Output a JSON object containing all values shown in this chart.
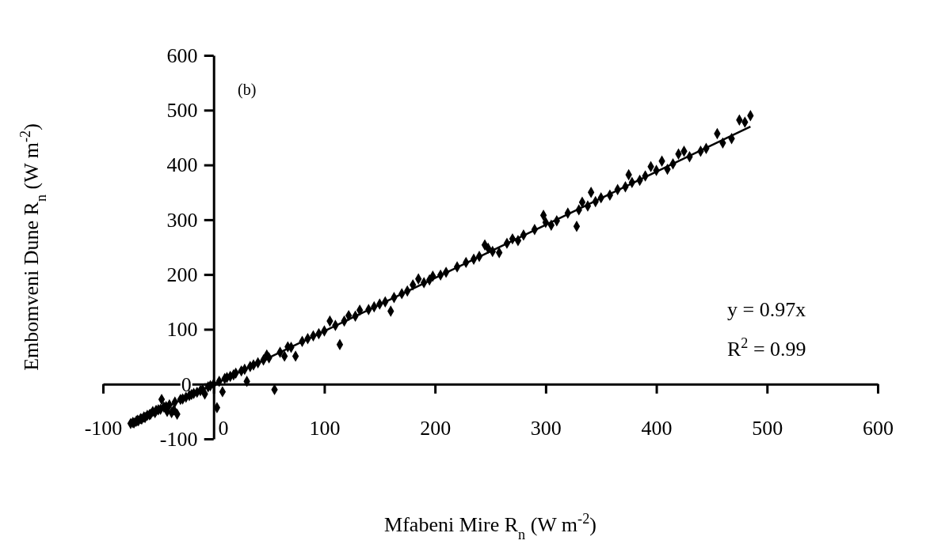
{
  "chart_data": {
    "type": "scatter",
    "xlabel": "Mfabeni Mire R$_{n}$  (W m$^{-2}$)",
    "ylabel": "Embomveni Dune R$_{n}$  (W m$^{-2}$)",
    "xlim": [
      -100,
      600
    ],
    "xticks": [
      -100,
      0,
      100,
      200,
      300,
      400,
      500,
      600
    ],
    "ylim": [
      -100,
      600
    ],
    "yticks": [
      -100,
      0,
      100,
      200,
      300,
      400,
      500,
      600
    ],
    "grid": false,
    "annotations": [
      "(b)",
      "y = 0.97x",
      "R$^{2}$ = 0.99"
    ],
    "series": [
      {
        "marker": "diamond",
        "color": "#000000",
        "x": [
          -75,
          -73,
          -72,
          -70,
          -69,
          -68,
          -66,
          -65,
          -63,
          -62,
          -60,
          -58,
          -57,
          -55,
          -53,
          -52,
          -50,
          -48,
          -47,
          -45,
          -43,
          -42,
          -40,
          -38,
          -36,
          -35,
          -33,
          -30,
          -28,
          -25,
          -22,
          -20,
          -18,
          -15,
          -12,
          -10,
          -8,
          -5,
          -3,
          0,
          3,
          5,
          8,
          10,
          12,
          15,
          18,
          20,
          25,
          28,
          30,
          33,
          36,
          40,
          45,
          48,
          50,
          55,
          60,
          64,
          67,
          70,
          74,
          80,
          85,
          90,
          95,
          100,
          105,
          110,
          114,
          118,
          122,
          128,
          132,
          140,
          145,
          150,
          155,
          160,
          163,
          170,
          175,
          180,
          185,
          190,
          195,
          198,
          205,
          210,
          220,
          228,
          235,
          240,
          245,
          248,
          252,
          258,
          265,
          270,
          275,
          280,
          290,
          298,
          300,
          305,
          310,
          320,
          328,
          330,
          333,
          338,
          341,
          345,
          350,
          358,
          365,
          372,
          375,
          378,
          385,
          390,
          395,
          400,
          405,
          410,
          415,
          420,
          425,
          430,
          440,
          445,
          455,
          460,
          468,
          475,
          480,
          485
        ],
        "values": [
          -72,
          -70,
          -71,
          -68,
          -66,
          -67,
          -63,
          -64,
          -60,
          -61,
          -57,
          -56,
          -55,
          -50,
          -52,
          -48,
          -47,
          -46,
          -28,
          -42,
          -41,
          -50,
          -38,
          -52,
          -47,
          -33,
          -55,
          -28,
          -27,
          -24,
          -21,
          -19,
          -17,
          -15,
          -12,
          -10,
          -18,
          -5,
          -3,
          0,
          -43,
          5,
          -14,
          10,
          12,
          14,
          17,
          20,
          24,
          27,
          5,
          32,
          35,
          39,
          44,
          53,
          48,
          -10,
          58,
          51,
          68,
          67,
          51,
          78,
          83,
          88,
          92,
          97,
          115,
          107,
          72,
          115,
          125,
          124,
          135,
          136,
          141,
          146,
          150,
          133,
          158,
          165,
          170,
          181,
          192,
          185,
          190,
          197,
          199,
          204,
          214,
          222,
          228,
          233,
          254,
          248,
          242,
          240,
          257,
          265,
          262,
          272,
          282,
          308,
          295,
          290,
          298,
          312,
          288,
          318,
          332,
          325,
          350,
          333,
          340,
          345,
          355,
          360,
          382,
          368,
          372,
          380,
          397,
          390,
          407,
          392,
          402,
          420,
          425,
          415,
          425,
          430,
          457,
          440,
          448,
          482,
          478,
          490
        ]
      },
      {
        "type": "line",
        "color": "#000000",
        "x": [
          -75,
          485
        ],
        "values": [
          -73,
          470
        ]
      }
    ]
  }
}
